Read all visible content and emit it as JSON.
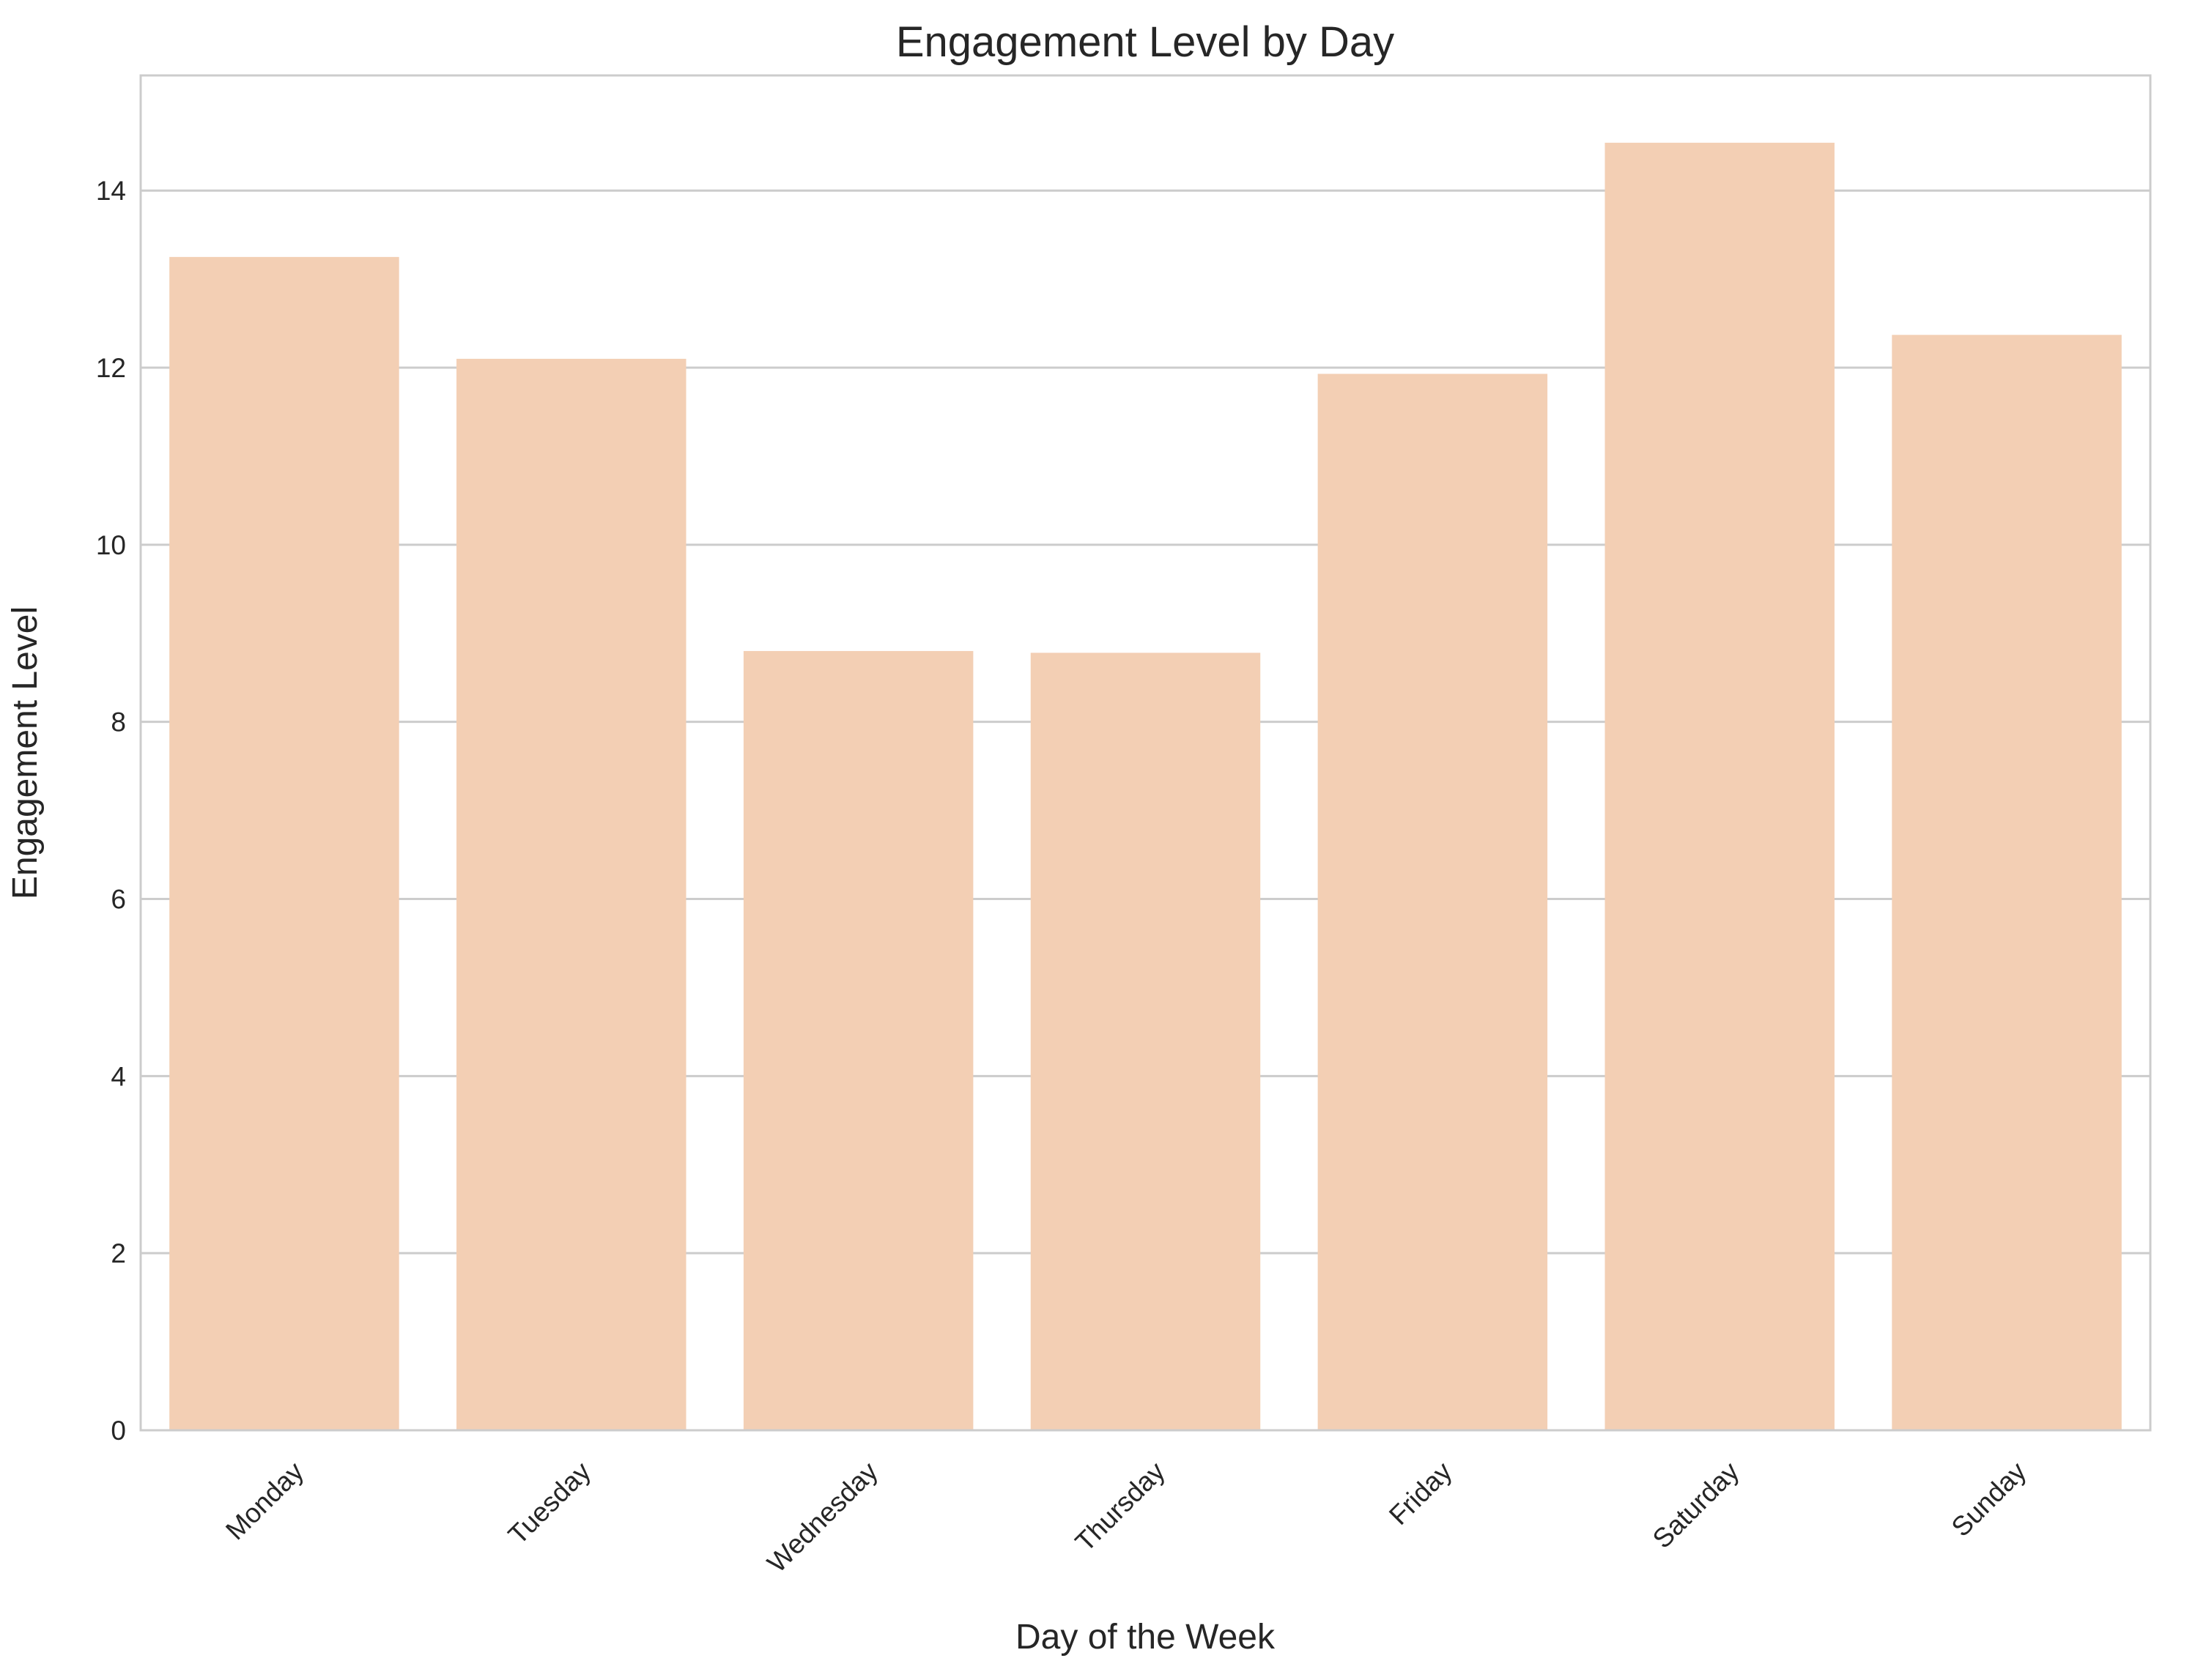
{
  "chart_data": {
    "type": "bar",
    "title": "Engagement Level by Day",
    "xlabel": "Day of the Week",
    "ylabel": "Engagement Level",
    "categories": [
      "Monday",
      "Tuesday",
      "Wednesday",
      "Thursday",
      "Friday",
      "Saturday",
      "Sunday"
    ],
    "values": [
      13.25,
      12.1,
      8.8,
      8.78,
      11.93,
      14.54,
      12.37
    ],
    "ylim": [
      0,
      15.3
    ],
    "yticks": [
      0,
      2,
      4,
      6,
      8,
      10,
      12,
      14
    ],
    "ytick_labels": [
      "0",
      "2",
      "4",
      "6",
      "8",
      "10",
      "12",
      "14"
    ],
    "grid": "horizontal",
    "legend": "none",
    "xtick_rotation_deg": 45,
    "colors": {
      "bar": "#F3CFB4",
      "grid": "#CCCCCC",
      "frame": "#CCCCCC",
      "text": "#262626",
      "background": "#FFFFFF"
    }
  }
}
